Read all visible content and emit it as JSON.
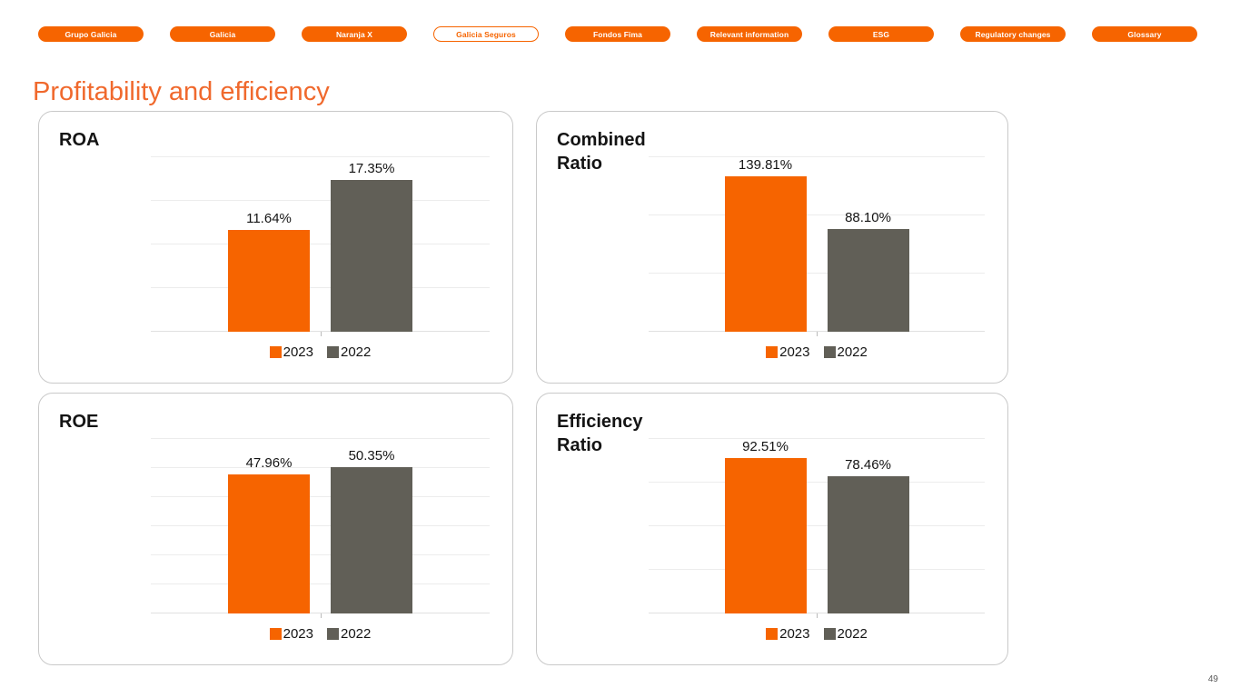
{
  "page": {
    "title": "Profitability and efficiency",
    "page_number": "49"
  },
  "nav": {
    "tabs": [
      {
        "label": "Grupo Galicia",
        "active": false
      },
      {
        "label": "Galicia",
        "active": false
      },
      {
        "label": "Naranja X",
        "active": false
      },
      {
        "label": "Galicia Seguros",
        "active": true
      },
      {
        "label": "Fondos Fima",
        "active": false
      },
      {
        "label": "Relevant information",
        "active": false
      },
      {
        "label": "ESG",
        "active": false
      },
      {
        "label": "Regulatory changes",
        "active": false
      },
      {
        "label": "Glossary",
        "active": false
      }
    ]
  },
  "colors": {
    "accent_orange": "#F66400",
    "bar_gray": "#615F57",
    "title_orange": "#F0692D",
    "gridline": "#ececec",
    "card_border": "#c9c9c9"
  },
  "legend": {
    "items": [
      {
        "label": "2023",
        "color": "#F66400"
      },
      {
        "label": "2022",
        "color": "#615F57"
      }
    ]
  },
  "chart_data": [
    {
      "type": "bar",
      "title": "ROA",
      "categories": [
        "2023",
        "2022"
      ],
      "values": [
        11.64,
        17.35
      ],
      "labels": [
        "11.64%",
        "17.35%"
      ],
      "ylim": [
        0,
        20
      ],
      "gridline_step": 5,
      "grid": true,
      "legend_position": "bottom"
    },
    {
      "type": "bar",
      "title": "Combined Ratio",
      "categories": [
        "2023",
        "2022"
      ],
      "values": [
        139.81,
        88.1
      ],
      "labels": [
        "139.81%",
        "88.10%"
      ],
      "ylim": [
        0,
        150
      ],
      "gridline_step": 50,
      "grid": true,
      "legend_position": "bottom"
    },
    {
      "type": "bar",
      "title": "ROE",
      "categories": [
        "2023",
        "2022"
      ],
      "values": [
        47.96,
        50.35
      ],
      "labels": [
        "47.96%",
        "50.35%"
      ],
      "ylim": [
        0,
        60
      ],
      "gridline_step": 10,
      "grid": true,
      "legend_position": "bottom"
    },
    {
      "type": "bar",
      "title": "Efficiency Ratio",
      "categories": [
        "2023",
        "2022"
      ],
      "values": [
        92.51,
        78.46
      ],
      "labels": [
        "92.51%",
        "78.46%"
      ],
      "ylim": [
        0,
        100
      ],
      "gridline_step": 25,
      "grid": true,
      "legend_position": "bottom"
    }
  ]
}
